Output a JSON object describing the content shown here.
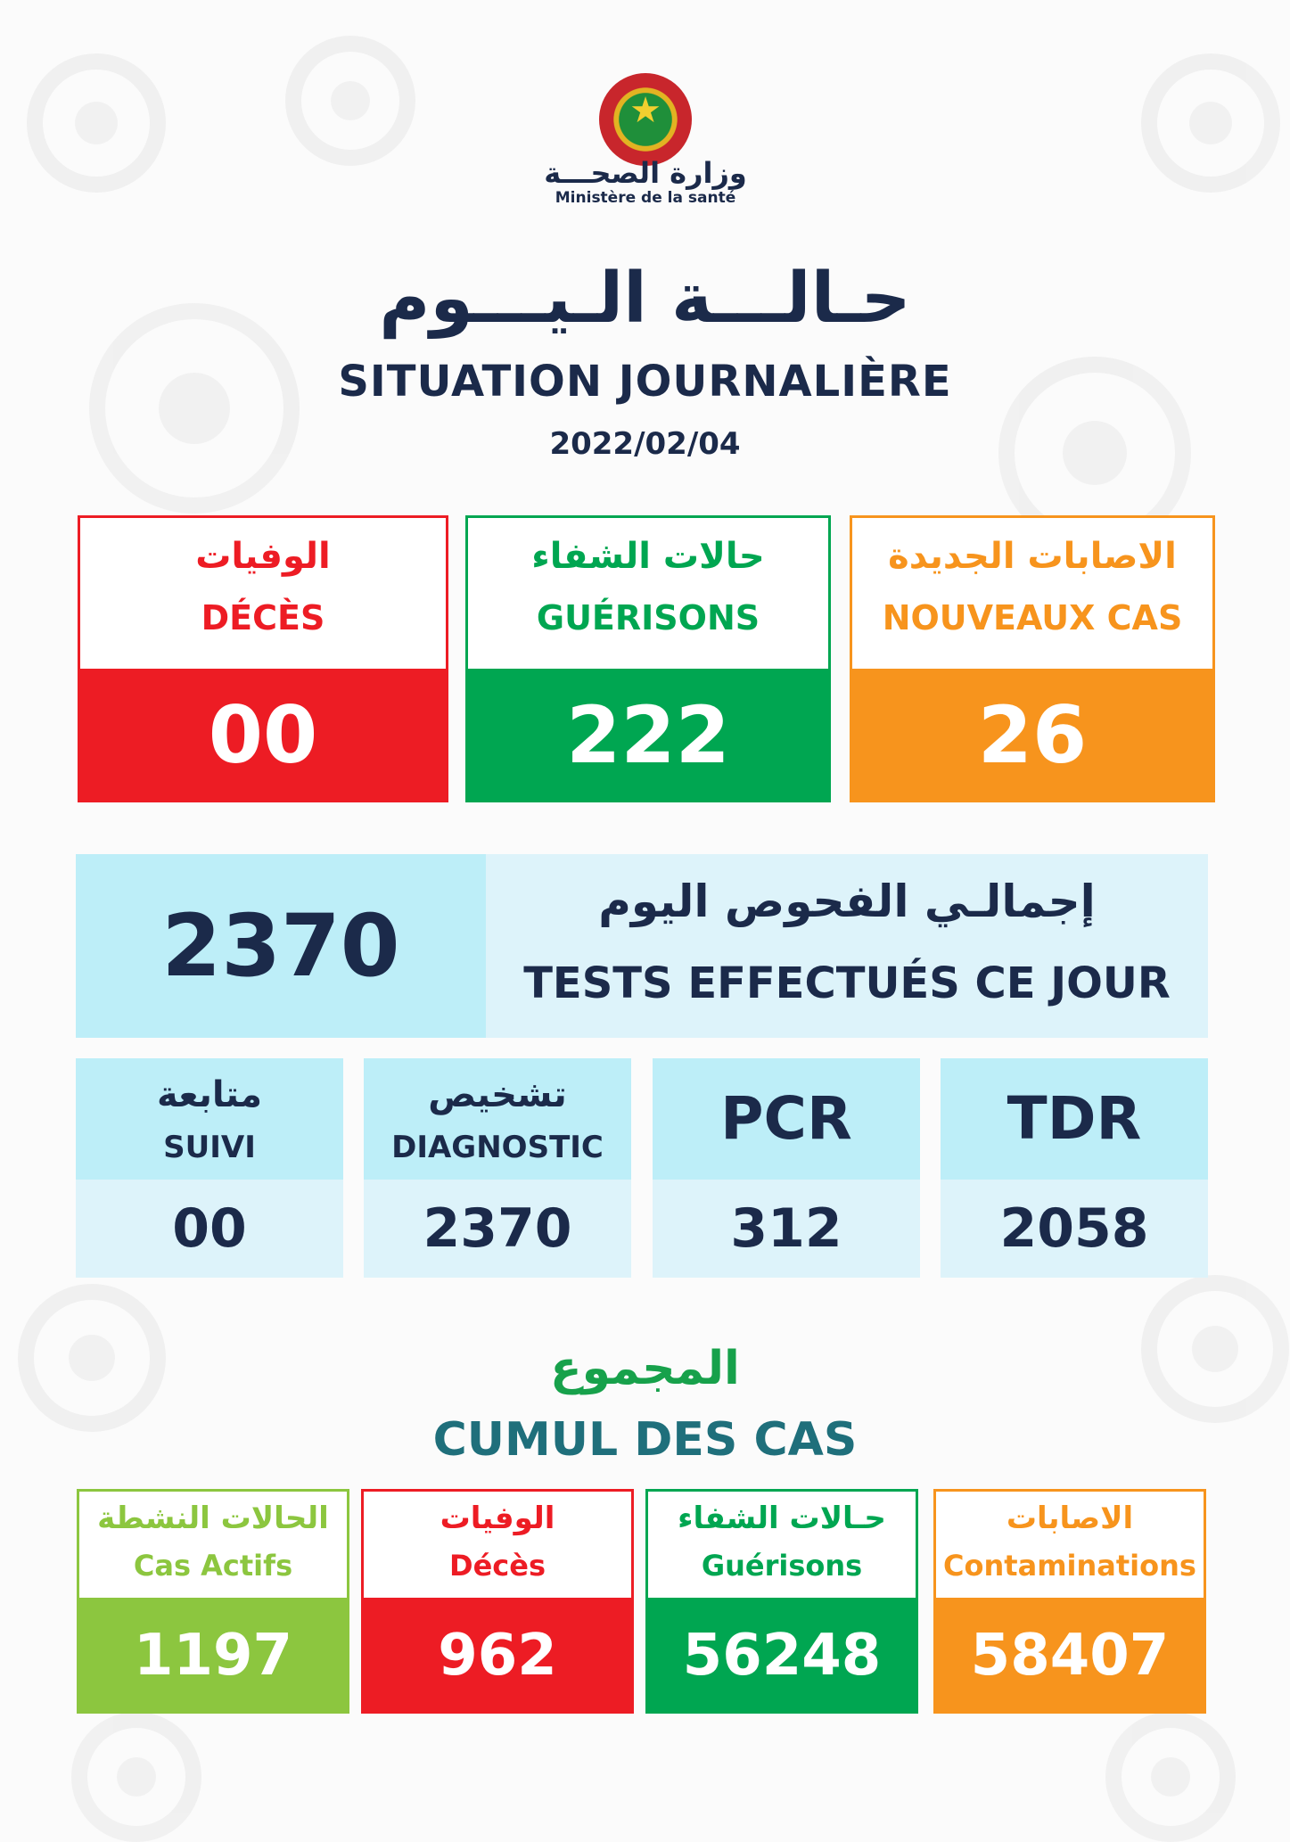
{
  "colors": {
    "navy": "#1b2a4a",
    "red": "#ed1c24",
    "green": "#00a651",
    "orange": "#f7941d",
    "light_green": "#8cc63f",
    "cyan_dark": "#bdeef8",
    "cyan_light": "#ddf3fa",
    "teal": "#1f6f7b"
  },
  "header": {
    "logo_icon": "national-emblem-icon",
    "ministry_ar": "وزارة الصحـــة",
    "ministry_fr": "Ministère de la santé",
    "title_ar": "حـالـــة الـيـــوم",
    "title_fr": "SITUATION JOURNALIÈRE",
    "date": "2022/02/04"
  },
  "daily": {
    "deces": {
      "ar": "الوفيات",
      "fr": "DÉCÈS",
      "value": "00"
    },
    "guerisons": {
      "ar": "حالات الشفاء",
      "fr": "GUÉRISONS",
      "value": "222"
    },
    "nouveaux": {
      "ar": "الاصابات الجديدة",
      "fr": "NOUVEAUX CAS",
      "value": "26"
    }
  },
  "tests": {
    "total": "2370",
    "ar": "إجمالـي الفحوص اليوم",
    "fr": "TESTS EFFECTUÉS CE JOUR",
    "suivi": {
      "ar": "متابعة",
      "fr": "SUIVI",
      "value": "00"
    },
    "diagnostic": {
      "ar": "تشخيص",
      "fr": "DIAGNOSTIC",
      "value": "2370"
    },
    "pcr": {
      "label": "PCR",
      "value": "312"
    },
    "tdr": {
      "label": "TDR",
      "value": "2058"
    }
  },
  "cumul": {
    "ar": "المجموع",
    "fr": "CUMUL DES CAS",
    "actifs": {
      "ar": "الحالات النشطة",
      "fr": "Cas Actifs",
      "value": "1197"
    },
    "deces": {
      "ar": "الوفيات",
      "fr": "Décès",
      "value": "962"
    },
    "guerisons": {
      "ar": "حـالات الشفاء",
      "fr": "Guérisons",
      "value": "56248"
    },
    "contaminations": {
      "ar": "الاصابات",
      "fr": "Contaminations",
      "value": "58407"
    }
  }
}
